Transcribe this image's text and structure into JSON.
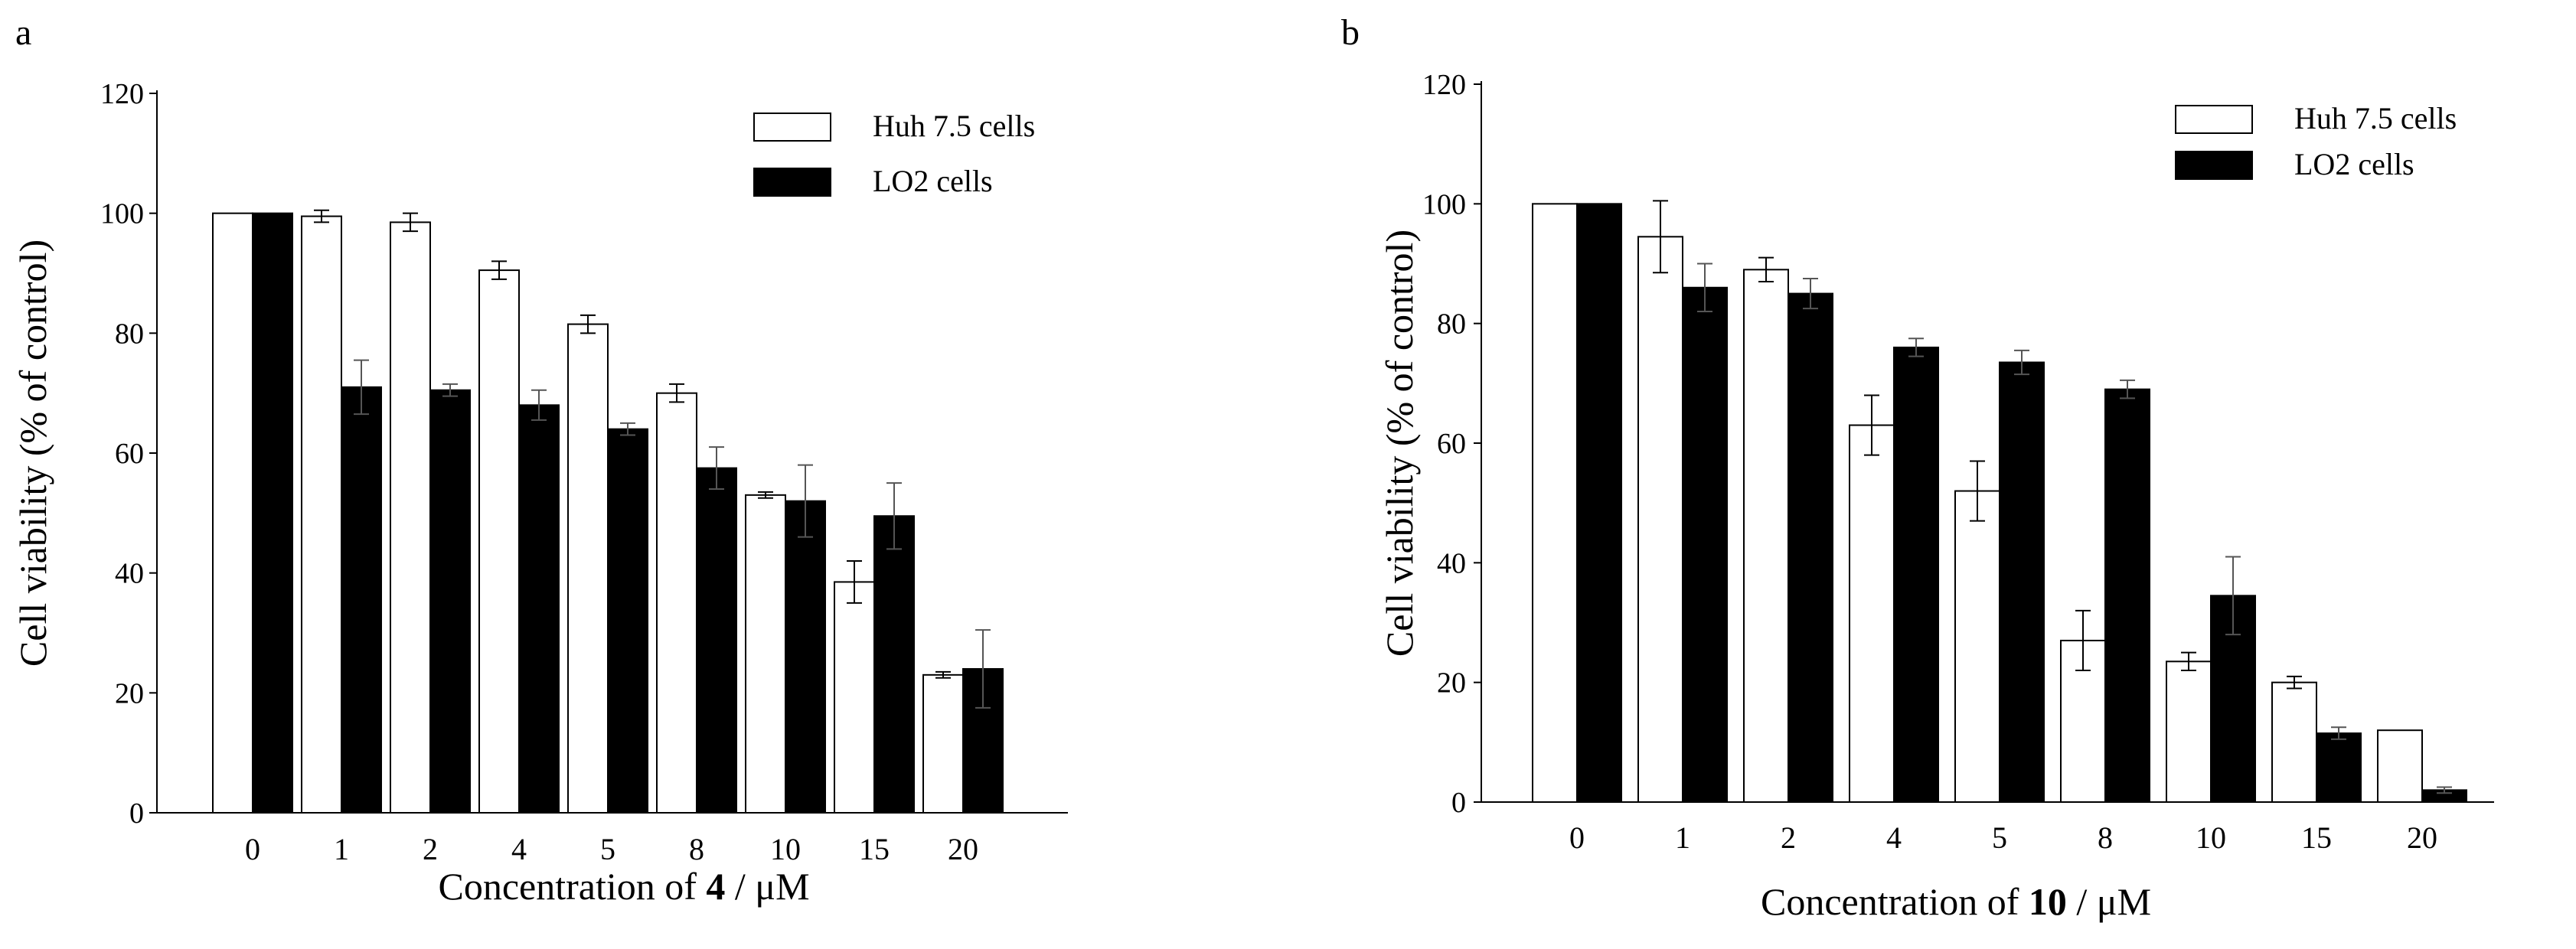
{
  "chart_data": [
    {
      "panel_label": "a",
      "type": "bar",
      "categories": [
        "0",
        "1",
        "2",
        "4",
        "5",
        "8",
        "10",
        "15",
        "20"
      ],
      "xlabel_prefix": "Concentration of ",
      "xlabel_bold": "4",
      "xlabel_suffix": " / μM",
      "ylabel": "Cell viability  (% of control)",
      "ylim": [
        0,
        120
      ],
      "yticks": [
        0,
        20,
        40,
        60,
        80,
        100,
        120
      ],
      "legend_position": "top-right",
      "series": [
        {
          "name": "Huh 7.5 cells",
          "fill": "#ffffff",
          "values": [
            100,
            99.5,
            98.5,
            90.5,
            81.5,
            70,
            53,
            38.5,
            23
          ],
          "errors": [
            0,
            1,
            1.5,
            1.5,
            1.5,
            1.5,
            0.5,
            3.5,
            0.5
          ]
        },
        {
          "name": "LO2 cells",
          "fill": "#000000",
          "values": [
            100,
            71,
            70.5,
            68,
            64,
            57.5,
            52,
            49.5,
            24
          ],
          "errors": [
            0,
            4.5,
            1,
            2.5,
            1,
            3.5,
            6,
            5.5,
            6.5
          ]
        }
      ]
    },
    {
      "panel_label": "b",
      "type": "bar",
      "categories": [
        "0",
        "1",
        "2",
        "4",
        "5",
        "8",
        "10",
        "15",
        "20"
      ],
      "xlabel_prefix": "Concentration of ",
      "xlabel_bold": "10",
      "xlabel_suffix": " / μM",
      "ylabel": "Cell viability  (% of control)",
      "ylim": [
        0,
        120
      ],
      "yticks": [
        0,
        20,
        40,
        60,
        80,
        100,
        120
      ],
      "legend_position": "top-right",
      "series": [
        {
          "name": "Huh 7.5 cells",
          "fill": "#ffffff",
          "values": [
            100,
            94.5,
            89,
            63,
            52,
            27,
            23.5,
            20,
            12
          ],
          "errors": [
            0,
            6,
            2,
            5,
            5,
            5,
            1.5,
            1,
            0
          ]
        },
        {
          "name": "LO2 cells",
          "fill": "#000000",
          "values": [
            100,
            86,
            85,
            76,
            73.5,
            69,
            34.5,
            11.5,
            2
          ],
          "errors": [
            0,
            4,
            2.5,
            1.5,
            2,
            1.5,
            6.5,
            1,
            0.5
          ]
        }
      ]
    }
  ]
}
